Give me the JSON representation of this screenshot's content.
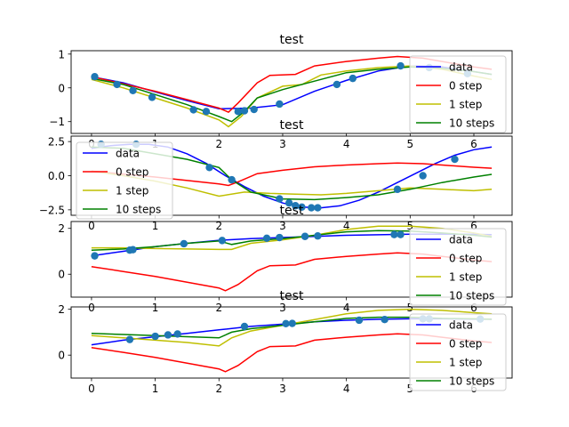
{
  "chart_data": [
    {
      "type": "line",
      "title": "test",
      "xlim": [
        -0.32,
        6.6
      ],
      "ylim": [
        -1.35,
        1.1
      ],
      "xticks": [
        0,
        1,
        2,
        3,
        4,
        5,
        6
      ],
      "yticks": [
        -1,
        0,
        1
      ],
      "legend": "right",
      "series": [
        {
          "name": "data",
          "color": "#0000ff",
          "x": [
            0,
            0.5,
            1,
            1.5,
            2,
            2.5,
            3,
            3.5,
            4,
            4.5,
            5,
            5.5,
            6,
            6.28
          ],
          "y": [
            0.33,
            0.15,
            -0.12,
            -0.38,
            -0.62,
            -0.6,
            -0.5,
            -0.1,
            0.22,
            0.5,
            0.65,
            0.62,
            0.48,
            0.4
          ]
        },
        {
          "name": "0 step",
          "color": "#ff0000",
          "x": [
            0,
            0.5,
            1,
            1.5,
            2,
            2.15,
            2.3,
            2.6,
            2.8,
            3.2,
            3.5,
            4,
            4.5,
            4.8,
            5.2,
            5.5,
            6,
            6.28
          ],
          "y": [
            0.33,
            0.12,
            -0.1,
            -0.35,
            -0.6,
            -0.72,
            -0.45,
            0.15,
            0.37,
            0.4,
            0.65,
            0.78,
            0.88,
            0.93,
            0.88,
            0.78,
            0.62,
            0.55
          ]
        },
        {
          "name": "1 step",
          "color": "#bfbf00",
          "x": [
            0,
            0.5,
            1,
            1.5,
            2,
            2.15,
            2.35,
            2.6,
            3,
            3.3,
            3.6,
            4,
            4.5,
            5,
            5.5,
            6,
            6.28
          ],
          "y": [
            0.25,
            0.0,
            -0.3,
            -0.6,
            -0.95,
            -1.15,
            -0.85,
            -0.3,
            0.05,
            0.1,
            0.38,
            0.5,
            0.6,
            0.65,
            0.55,
            0.35,
            0.25
          ]
        },
        {
          "name": "10 steps",
          "color": "#008000",
          "x": [
            0,
            0.5,
            1,
            1.5,
            2,
            2.2,
            2.4,
            2.6,
            3,
            3.5,
            4,
            4.5,
            5,
            5.5,
            6,
            6.28
          ],
          "y": [
            0.28,
            0.1,
            -0.2,
            -0.5,
            -0.85,
            -1.0,
            -0.7,
            -0.3,
            -0.05,
            0.2,
            0.45,
            0.55,
            0.62,
            0.58,
            0.48,
            0.4
          ]
        }
      ],
      "points": {
        "x": [
          0.05,
          0.4,
          0.65,
          0.95,
          1.6,
          1.8,
          2.3,
          2.4,
          2.55,
          2.95,
          3.85,
          4.1,
          4.85,
          5.3,
          5.9
        ],
        "y": [
          0.33,
          0.1,
          -0.08,
          -0.28,
          -0.65,
          -0.7,
          -0.7,
          -0.68,
          -0.64,
          -0.48,
          0.1,
          0.28,
          0.65,
          0.6,
          0.42
        ]
      }
    },
    {
      "type": "line",
      "title": "test",
      "xlim": [
        -0.32,
        6.6
      ],
      "ylim": [
        -2.9,
        2.9
      ],
      "xticks": [
        0,
        1,
        2,
        3,
        4,
        5,
        6
      ],
      "yticks": [
        -2.5,
        0.0,
        2.5
      ],
      "legend": "left",
      "series": [
        {
          "name": "data",
          "color": "#0000ff",
          "x": [
            0,
            0.3,
            0.6,
            0.9,
            1.2,
            1.5,
            1.8,
            2.1,
            2.4,
            2.7,
            3.0,
            3.3,
            3.6,
            3.9,
            4.2,
            4.5,
            4.8,
            5.1,
            5.4,
            5.7,
            6.0,
            6.28
          ],
          "y": [
            2.0,
            2.2,
            2.3,
            2.3,
            2.1,
            1.6,
            0.9,
            0.0,
            -0.8,
            -1.5,
            -2.0,
            -2.3,
            -2.35,
            -2.2,
            -1.8,
            -1.2,
            -0.5,
            0.2,
            0.9,
            1.5,
            1.9,
            2.1
          ]
        },
        {
          "name": "0 step",
          "color": "#ff0000",
          "x": [
            0,
            0.5,
            1,
            1.5,
            2,
            2.15,
            2.3,
            2.6,
            3,
            3.5,
            4,
            4.5,
            4.8,
            5.2,
            5.5,
            6,
            6.28
          ],
          "y": [
            0.33,
            0.12,
            -0.1,
            -0.35,
            -0.6,
            -0.72,
            -0.45,
            0.15,
            0.4,
            0.65,
            0.78,
            0.88,
            0.93,
            0.88,
            0.78,
            0.62,
            0.55
          ]
        },
        {
          "name": "1 step",
          "color": "#bfbf00",
          "x": [
            0,
            0.5,
            1,
            1.5,
            2,
            2.4,
            2.8,
            3.2,
            3.6,
            4,
            4.5,
            5,
            5.5,
            6,
            6.28
          ],
          "y": [
            0.33,
            0.0,
            -0.4,
            -0.9,
            -1.5,
            -1.2,
            -1.3,
            -1.35,
            -1.4,
            -1.3,
            -1.1,
            -0.9,
            -1.0,
            -1.1,
            -1.0
          ]
        },
        {
          "name": "10 steps",
          "color": "#008000",
          "x": [
            0,
            0.5,
            1,
            1.5,
            2,
            2.2,
            2.5,
            3,
            3.5,
            4,
            4.5,
            5,
            5.5,
            6,
            6.28
          ],
          "y": [
            2.1,
            2.0,
            1.6,
            1.2,
            0.6,
            -0.3,
            -1.2,
            -1.7,
            -1.75,
            -1.6,
            -1.4,
            -1.0,
            -0.5,
            -0.1,
            0.1
          ]
        }
      ],
      "points": {
        "x": [
          0.15,
          0.7,
          1.85,
          2.2,
          2.95,
          3.1,
          3.2,
          3.3,
          3.45,
          3.55,
          4.8,
          5.2,
          5.7
        ],
        "y": [
          2.3,
          2.3,
          0.6,
          -0.3,
          -1.7,
          -2.0,
          -2.2,
          -2.3,
          -2.35,
          -2.35,
          -1.0,
          0.0,
          1.2
        ]
      }
    },
    {
      "type": "line",
      "title": "test",
      "xlim": [
        -0.32,
        6.6
      ],
      "ylim": [
        -1.0,
        2.3
      ],
      "xticks": [
        0,
        1,
        2,
        3,
        4,
        5,
        6
      ],
      "yticks": [
        0,
        2
      ],
      "legend": "right",
      "series": [
        {
          "name": "data",
          "color": "#0000ff",
          "x": [
            0,
            0.5,
            1,
            1.5,
            2,
            2.5,
            3,
            3.5,
            4,
            4.5,
            5,
            5.5,
            6,
            6.28
          ],
          "y": [
            0.8,
            1.0,
            1.2,
            1.35,
            1.48,
            1.55,
            1.6,
            1.65,
            1.7,
            1.72,
            1.75,
            1.75,
            1.74,
            1.73
          ]
        },
        {
          "name": "0 step",
          "color": "#ff0000",
          "x": [
            0,
            0.5,
            1,
            1.5,
            2,
            2.1,
            2.3,
            2.6,
            2.8,
            3.2,
            3.5,
            4,
            4.5,
            4.8,
            5.2,
            5.5,
            6,
            6.28
          ],
          "y": [
            0.33,
            0.12,
            -0.1,
            -0.35,
            -0.6,
            -0.72,
            -0.45,
            0.15,
            0.37,
            0.4,
            0.65,
            0.78,
            0.88,
            0.93,
            0.88,
            0.78,
            0.62,
            0.55
          ]
        },
        {
          "name": "1 step",
          "color": "#bfbf00",
          "x": [
            0,
            0.5,
            1,
            1.5,
            2,
            2.2,
            2.5,
            3,
            3.5,
            4,
            4.5,
            5,
            5.5,
            6,
            6.28
          ],
          "y": [
            1.15,
            1.15,
            1.12,
            1.1,
            1.08,
            1.08,
            1.35,
            1.5,
            1.7,
            1.95,
            2.1,
            2.1,
            2.0,
            1.8,
            1.65
          ]
        },
        {
          "name": "10 steps",
          "color": "#008000",
          "x": [
            0,
            0.5,
            1,
            1.5,
            2,
            2.2,
            2.5,
            3,
            3.5,
            4,
            4.5,
            5,
            5.5,
            6,
            6.28
          ],
          "y": [
            1.05,
            1.1,
            1.2,
            1.35,
            1.45,
            1.3,
            1.45,
            1.55,
            1.7,
            1.85,
            1.9,
            1.88,
            1.8,
            1.7,
            1.62
          ]
        }
      ],
      "points": {
        "x": [
          0.05,
          0.6,
          0.65,
          1.45,
          2.05,
          2.75,
          2.95,
          3.35,
          3.55,
          4.75,
          4.85
        ],
        "y": [
          0.8,
          1.05,
          1.07,
          1.33,
          1.47,
          1.57,
          1.6,
          1.65,
          1.67,
          1.73,
          1.73
        ]
      }
    },
    {
      "type": "line",
      "title": "test",
      "xlim": [
        -0.32,
        6.6
      ],
      "ylim": [
        -1.0,
        2.1
      ],
      "xticks": [
        0,
        1,
        2,
        3,
        4,
        5,
        6
      ],
      "yticks": [
        0,
        2
      ],
      "legend": "right",
      "series": [
        {
          "name": "data",
          "color": "#0000ff",
          "x": [
            0,
            0.5,
            1,
            1.5,
            2,
            2.5,
            3,
            3.5,
            4,
            4.5,
            5,
            5.5,
            6,
            6.28
          ],
          "y": [
            0.45,
            0.65,
            0.8,
            0.95,
            1.1,
            1.25,
            1.35,
            1.45,
            1.52,
            1.56,
            1.58,
            1.58,
            1.57,
            1.56
          ]
        },
        {
          "name": "0 step",
          "color": "#ff0000",
          "x": [
            0,
            0.5,
            1,
            1.5,
            2,
            2.1,
            2.3,
            2.6,
            2.8,
            3.2,
            3.5,
            4,
            4.5,
            4.8,
            5.2,
            5.5,
            6,
            6.28
          ],
          "y": [
            0.33,
            0.12,
            -0.1,
            -0.35,
            -0.6,
            -0.72,
            -0.45,
            0.15,
            0.37,
            0.4,
            0.65,
            0.78,
            0.88,
            0.93,
            0.88,
            0.78,
            0.62,
            0.55
          ]
        },
        {
          "name": "1 step",
          "color": "#bfbf00",
          "x": [
            0,
            0.5,
            1,
            1.5,
            2,
            2.2,
            2.5,
            3,
            3.5,
            4,
            4.5,
            5,
            5.5,
            6,
            6.28
          ],
          "y": [
            0.85,
            0.75,
            0.65,
            0.55,
            0.4,
            0.75,
            1.05,
            1.3,
            1.55,
            1.8,
            1.95,
            2.0,
            1.95,
            1.85,
            1.8
          ]
        },
        {
          "name": "10 steps",
          "color": "#008000",
          "x": [
            0,
            0.5,
            1,
            1.5,
            2,
            2.2,
            2.5,
            3,
            3.5,
            4,
            4.5,
            5,
            5.5,
            6,
            6.28
          ],
          "y": [
            0.95,
            0.9,
            0.85,
            0.8,
            0.75,
            1.0,
            1.15,
            1.3,
            1.45,
            1.6,
            1.65,
            1.65,
            1.6,
            1.58,
            1.56
          ]
        }
      ],
      "points": {
        "x": [
          0.6,
          1.0,
          1.2,
          1.35,
          2.4,
          3.05,
          3.15,
          4.2,
          4.6,
          5.2,
          5.3,
          6.1
        ],
        "y": [
          0.68,
          0.82,
          0.88,
          0.92,
          1.25,
          1.37,
          1.38,
          1.52,
          1.55,
          1.58,
          1.58,
          1.57
        ]
      }
    }
  ]
}
